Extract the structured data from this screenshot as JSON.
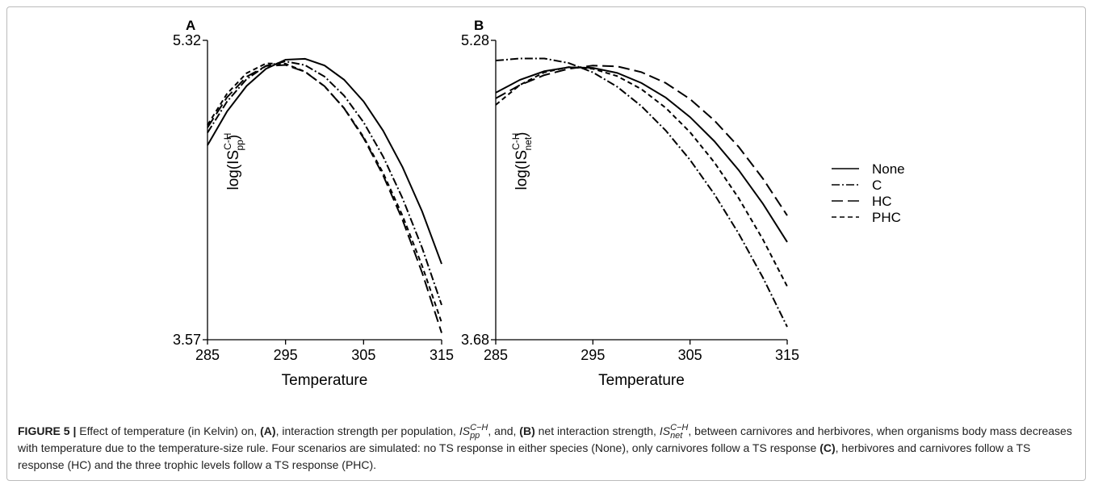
{
  "chart_data": [
    {
      "type": "line",
      "panel_label": "A",
      "xlabel": "Temperature",
      "ylabel": {
        "base": "log(IS",
        "sup": "C-H",
        "sub": "pp",
        "close": ")"
      },
      "xlim": [
        285,
        315
      ],
      "xticks": [
        285,
        295,
        305,
        315
      ],
      "ylim": [
        3.57,
        5.32
      ],
      "yticks": [
        3.57,
        5.32
      ],
      "x": [
        285,
        287.5,
        290,
        292.5,
        295,
        297.5,
        300,
        302.5,
        305,
        307.5,
        310,
        312.5,
        315
      ],
      "series": [
        {
          "name": "None",
          "color": "#000000",
          "dash": "solid",
          "values": [
            4.707,
            4.904,
            5.053,
            5.154,
            5.207,
            5.212,
            5.173,
            5.09,
            4.963,
            4.792,
            4.578,
            4.32,
            4.013
          ]
        },
        {
          "name": "C",
          "color": "#000000",
          "dash": "dashdot",
          "values": [
            4.78,
            4.962,
            5.093,
            5.171,
            5.197,
            5.175,
            5.108,
            4.997,
            4.841,
            4.641,
            4.396,
            4.107,
            3.773
          ]
        },
        {
          "name": "HC",
          "color": "#000000",
          "dash": "longdash",
          "values": [
            4.81,
            4.987,
            5.107,
            5.17,
            5.176,
            5.136,
            5.052,
            4.923,
            4.749,
            4.531,
            4.269,
            3.962,
            3.61
          ]
        },
        {
          "name": "PHC",
          "color": "#000000",
          "dash": "dash",
          "values": [
            4.825,
            5.008,
            5.128,
            5.185,
            5.183,
            5.137,
            5.051,
            4.924,
            4.755,
            4.545,
            4.294,
            4.002,
            3.67
          ]
        }
      ]
    },
    {
      "type": "line",
      "panel_label": "B",
      "xlabel": "Temperature",
      "ylabel": {
        "base": "log(IS",
        "sup": "C-H",
        "sub": "net",
        "close": ")"
      },
      "xlim": [
        285,
        315
      ],
      "xticks": [
        285,
        295,
        305,
        315
      ],
      "ylim": [
        3.68,
        5.28
      ],
      "yticks": [
        3.68,
        5.28
      ],
      "x": [
        285,
        287.5,
        290,
        292.5,
        295,
        297.5,
        300,
        302.5,
        305,
        307.5,
        310,
        312.5,
        315
      ],
      "series": [
        {
          "name": "None",
          "color": "#000000",
          "dash": "solid",
          "values": [
            5.0,
            5.069,
            5.115,
            5.136,
            5.133,
            5.106,
            5.052,
            4.974,
            4.87,
            4.741,
            4.587,
            4.407,
            4.202
          ]
        },
        {
          "name": "C",
          "color": "#000000",
          "dash": "dashdot",
          "values": [
            5.172,
            5.183,
            5.183,
            5.159,
            5.109,
            5.032,
            4.928,
            4.798,
            4.641,
            4.458,
            4.248,
            4.012,
            3.749
          ]
        },
        {
          "name": "HC",
          "color": "#000000",
          "dash": "longdash",
          "values": [
            4.97,
            5.041,
            5.094,
            5.128,
            5.145,
            5.141,
            5.11,
            5.052,
            4.966,
            4.852,
            4.711,
            4.541,
            4.344
          ]
        },
        {
          "name": "PHC",
          "color": "#000000",
          "dash": "dash",
          "values": [
            4.935,
            5.042,
            5.109,
            5.137,
            5.128,
            5.089,
            5.019,
            4.919,
            4.789,
            4.628,
            4.437,
            4.216,
            3.965
          ]
        }
      ]
    }
  ],
  "caption": {
    "label": "FIGURE 5 |",
    "t0": " Effect of temperature (in Kelvin) on, ",
    "a": "(A)",
    "t1": ", interaction strength per population, ",
    "m1": {
      "base": "IS",
      "sub": "pp",
      "sup": "C−H"
    },
    "t2": ", and, ",
    "b": "(B)",
    "t3": " net interaction strength, ",
    "m2": {
      "base": "IS",
      "sub": "net",
      "sup": "C−H"
    },
    "t4": ", between carnivores and herbivores, when organisms body mass decreases with temperature due to the temperature-size rule. Four scenarios are simulated: no TS response in either species (None), only carnivores follow a TS response ",
    "c": "(C)",
    "t5": ", herbivores and carnivores follow a TS response (HC) and the three trophic levels follow a TS response (PHC)."
  }
}
